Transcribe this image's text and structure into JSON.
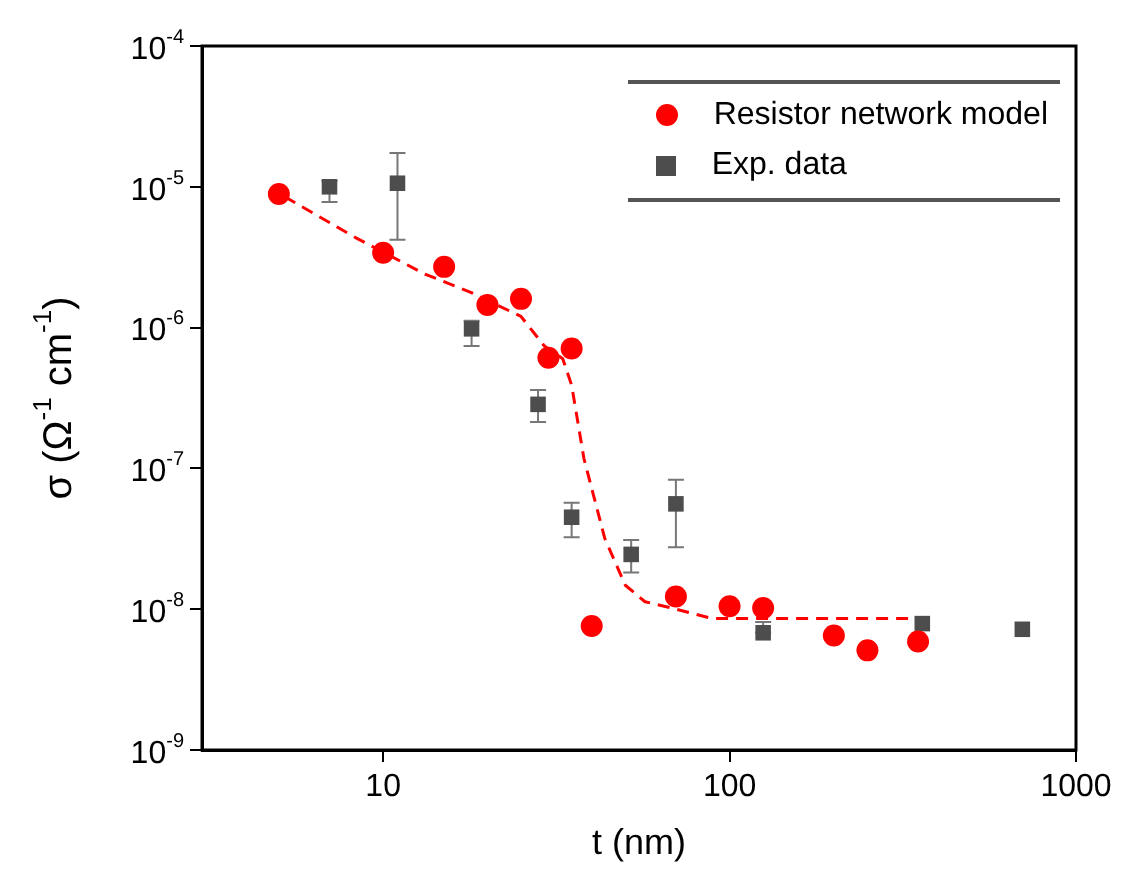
{
  "chart_data": {
    "type": "scatter",
    "xlabel": "t (nm)",
    "ylabel": "σ (Ω$^{-1}$ cm$^{-1}$)",
    "log": "xy",
    "xlim": [
      3,
      1000
    ],
    "xticks": [
      10,
      100,
      1000
    ],
    "ylim": [
      1e-09,
      0.0001
    ],
    "yticks": [
      {
        "value": 1e-09,
        "label": "10$^{-9}$"
      },
      {
        "value": 1e-08,
        "label": "10$^{-8}$"
      },
      {
        "value": 1e-07,
        "label": "10$^{-7}$"
      },
      {
        "value": 1e-06,
        "label": "10$^{-6}$"
      },
      {
        "value": 1e-05,
        "label": "10$^{-5}$"
      },
      {
        "value": 0.0001,
        "label": "10$^{-4}$"
      }
    ],
    "legend": "top right",
    "series": [
      {
        "name": "Resistor network model",
        "type": "scatter",
        "marker": "circle",
        "color": "#ff0000",
        "x": [
          5,
          10,
          15,
          20,
          25,
          30,
          35,
          40,
          70,
          100,
          125,
          200,
          250,
          350
        ],
        "values": [
          8.9e-06,
          3.4e-06,
          2.7e-06,
          1.45e-06,
          1.6e-06,
          6.1e-07,
          7.1e-07,
          7.6e-09,
          1.23e-08,
          1.05e-08,
          1.02e-08,
          6.5e-09,
          5.1e-09,
          5.9e-09
        ]
      },
      {
        "name": "Exp. data",
        "type": "scatter",
        "marker": "square",
        "color": "#4d4d4d",
        "x": [
          7,
          11,
          18,
          28,
          35,
          52,
          70,
          125,
          360,
          700
        ],
        "values": [
          1e-05,
          1.06e-05,
          9.8e-07,
          2.85e-07,
          4.5e-08,
          2.45e-08,
          5.6e-08,
          6.8e-09,
          7.9e-09,
          7.2e-09
        ],
        "errors": [
          [
            7.8e-06,
            1.1e-05
          ],
          [
            4.2e-06,
            1.74e-05
          ],
          [
            7.4e-07,
            1.12e-06
          ],
          [
            2.14e-07,
            3.6e-07
          ],
          [
            3.25e-08,
            5.7e-08
          ],
          [
            1.82e-08,
            3.1e-08
          ],
          [
            2.75e-08,
            8.3e-08
          ],
          [
            6.8e-09,
            8.1e-09
          ],
          null,
          null
        ]
      },
      {
        "type": "line",
        "marker": "none",
        "line_style": "dashed",
        "color": "#ff0000",
        "x": [
          5.2,
          8.4,
          13.2,
          17.9,
          25,
          29.2,
          33,
          35,
          38,
          43.6,
          50,
          57,
          68,
          89,
          150,
          352
        ],
        "values": [
          8.5e-06,
          4.3e-06,
          2.4e-06,
          1.78e-06,
          1.2e-06,
          7.4e-07,
          6e-07,
          3.9e-07,
          1.17e-07,
          3.2e-08,
          1.48e-08,
          1.13e-08,
          1.02e-08,
          8.6e-09,
          8.6e-09,
          8.6e-09
        ]
      }
    ]
  }
}
